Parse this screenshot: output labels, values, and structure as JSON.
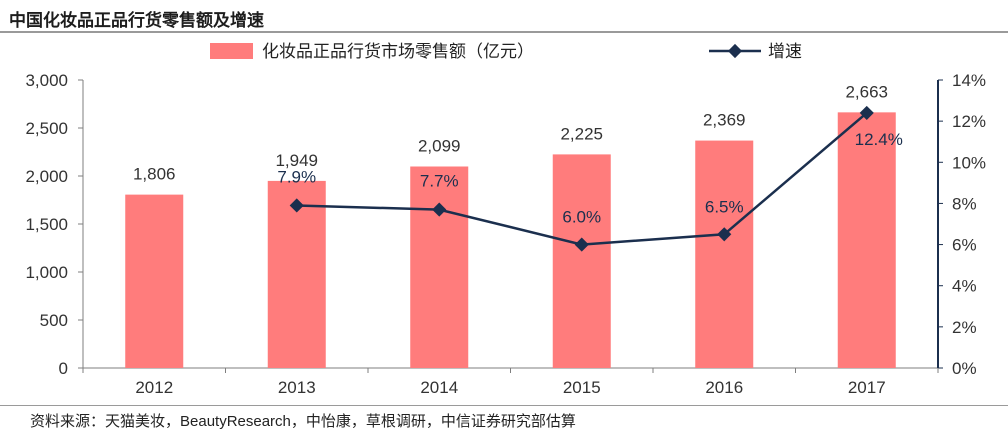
{
  "header": {
    "title": "中国化妆品正品行货零售额及增速"
  },
  "footer": {
    "source": "资料来源：天猫美妆，BeautyResearch，中怡康，草根调研，中信证券研究部估算"
  },
  "colors": {
    "bar": "#ff7c7c",
    "line": "#1b2f4e",
    "axis": "#1b2f4e"
  },
  "chart_data": {
    "type": "bar",
    "categories": [
      "2012",
      "2013",
      "2014",
      "2015",
      "2016",
      "2017"
    ],
    "series": [
      {
        "name": "化妆品正品行货市场零售额（亿元）",
        "type": "bar",
        "axis": "left",
        "values": [
          1806,
          1949,
          2099,
          2225,
          2369,
          2663
        ],
        "labels": [
          "1,806",
          "1,949",
          "2,099",
          "2,225",
          "2,369",
          "2,663"
        ]
      },
      {
        "name": "增速",
        "type": "line",
        "axis": "right",
        "values": [
          null,
          7.9,
          7.7,
          6.0,
          6.5,
          12.4
        ],
        "labels": [
          "",
          "7.9%",
          "7.7%",
          "6.0%",
          "6.5%",
          "12.4%"
        ]
      }
    ],
    "ylim_left": [
      0,
      3000
    ],
    "yticks_left": [
      "0",
      "500",
      "1,000",
      "1,500",
      "2,000",
      "2,500",
      "3,000"
    ],
    "ylim_right": [
      0,
      14
    ],
    "yticks_right": [
      "0%",
      "2%",
      "4%",
      "6%",
      "8%",
      "10%",
      "12%",
      "14%"
    ],
    "legend_position": "top",
    "grid": false
  }
}
